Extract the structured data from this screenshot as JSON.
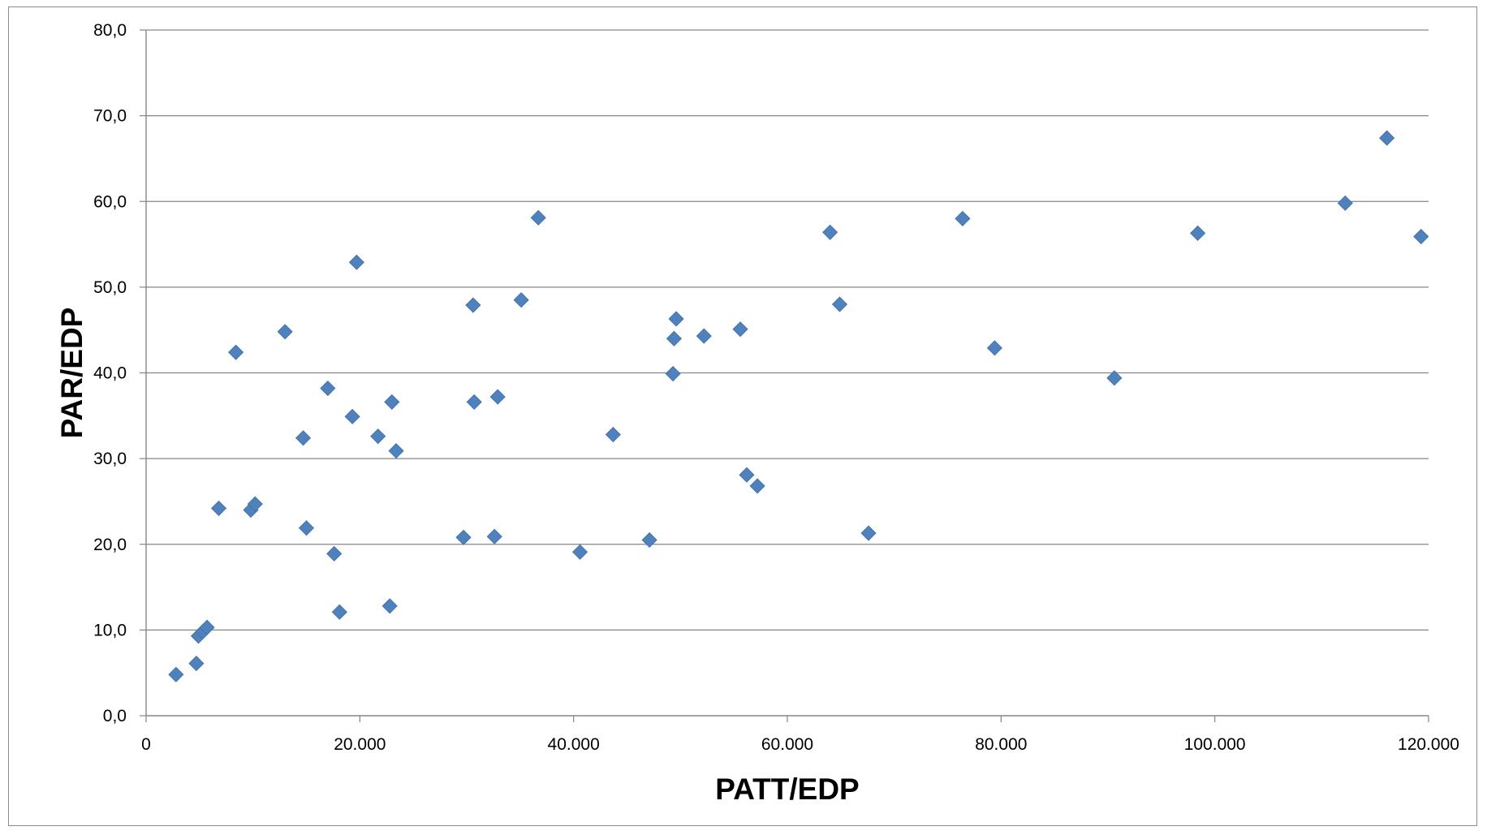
{
  "chart_data": {
    "type": "scatter",
    "title": "",
    "xlabel": "PATT/EDP",
    "ylabel": "PAR/EDP",
    "xlim": [
      0,
      120000
    ],
    "ylim": [
      0,
      80
    ],
    "x_ticks": [
      "0",
      "20.000",
      "40.000",
      "60.000",
      "80.000",
      "100.000",
      "120.000"
    ],
    "y_ticks": [
      "0,0",
      "10,0",
      "20,0",
      "30,0",
      "40,0",
      "50,0",
      "60,0",
      "70,0",
      "80,0"
    ],
    "grid": "horizontal",
    "legend": "none",
    "marker_color": "#4f81bd",
    "series": [
      {
        "points": [
          [
            2800,
            4.8
          ],
          [
            4700,
            6.1
          ],
          [
            4900,
            9.3
          ],
          [
            5300,
            9.8
          ],
          [
            5700,
            10.3
          ],
          [
            6800,
            24.2
          ],
          [
            8400,
            42.4
          ],
          [
            9800,
            24.0
          ],
          [
            10200,
            24.7
          ],
          [
            13000,
            44.8
          ],
          [
            14700,
            32.4
          ],
          [
            15000,
            21.9
          ],
          [
            17000,
            38.2
          ],
          [
            17600,
            18.9
          ],
          [
            18100,
            12.1
          ],
          [
            19300,
            34.9
          ],
          [
            19700,
            52.9
          ],
          [
            21700,
            32.6
          ],
          [
            22800,
            12.8
          ],
          [
            23000,
            36.6
          ],
          [
            23400,
            30.9
          ],
          [
            29700,
            20.8
          ],
          [
            30600,
            47.9
          ],
          [
            30700,
            36.6
          ],
          [
            32600,
            20.9
          ],
          [
            32900,
            37.2
          ],
          [
            35100,
            48.5
          ],
          [
            36700,
            58.1
          ],
          [
            40600,
            19.1
          ],
          [
            43700,
            32.8
          ],
          [
            47100,
            20.5
          ],
          [
            49300,
            39.9
          ],
          [
            49400,
            44.0
          ],
          [
            49600,
            46.3
          ],
          [
            52200,
            44.3
          ],
          [
            55600,
            45.1
          ],
          [
            56200,
            28.1
          ],
          [
            57200,
            26.8
          ],
          [
            64000,
            56.4
          ],
          [
            64900,
            48.0
          ],
          [
            67600,
            21.3
          ],
          [
            76400,
            58.0
          ],
          [
            79400,
            42.9
          ],
          [
            90600,
            39.4
          ],
          [
            98400,
            56.3
          ],
          [
            112200,
            59.8
          ],
          [
            116100,
            67.4
          ],
          [
            119300,
            55.9
          ]
        ]
      }
    ]
  }
}
